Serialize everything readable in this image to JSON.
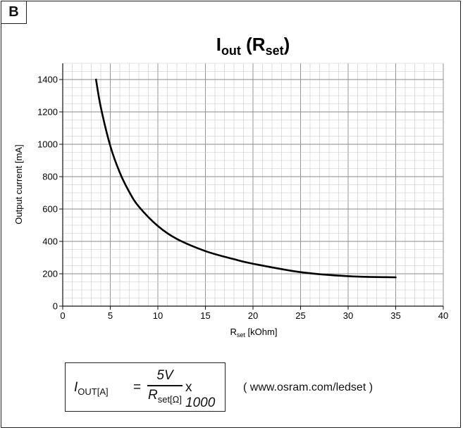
{
  "panel": {
    "label": "B"
  },
  "formula": {
    "lhs_var": "I",
    "lhs_sub": "OUT[A]",
    "equals": "=",
    "numerator": "5V",
    "denominator_var": "R",
    "denominator_sub": "set[Ω]",
    "multiplier_sign": "x",
    "multiplier_value": "1000"
  },
  "link_note": "( www.osram.com/ledset )",
  "chart_data": {
    "type": "line",
    "title": "Iout (Rset)",
    "title_main": "I",
    "title_sub": "out",
    "title_paren_open": " (R",
    "title_paren_sub": "set",
    "title_paren_close": ")",
    "xlabel_main": "R",
    "xlabel_sub": "set",
    "xlabel_unit": " [kOhm]",
    "ylabel": "Output current [mA]",
    "xlim": [
      0,
      40
    ],
    "ylim": [
      0,
      1500
    ],
    "x_ticks": [
      0,
      5,
      10,
      15,
      20,
      25,
      30,
      35,
      40
    ],
    "y_ticks": [
      0,
      200,
      400,
      600,
      800,
      1000,
      1200,
      1400
    ],
    "grid": true,
    "series": [
      {
        "color": "#000000",
        "x": [
          3.5,
          4,
          5,
          6,
          7,
          8,
          10,
          12,
          15,
          18,
          20,
          25,
          30,
          35
        ],
        "y": [
          1400,
          1230,
          990,
          825,
          705,
          615,
          495,
          415,
          340,
          290,
          262,
          210,
          185,
          178
        ]
      }
    ]
  }
}
